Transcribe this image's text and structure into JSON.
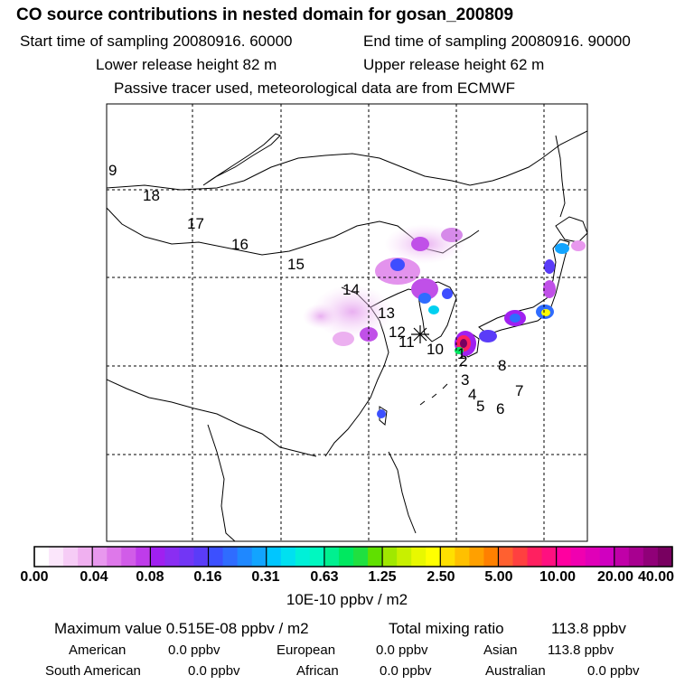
{
  "header": {
    "title": "CO  source contributions in nested domain for gosan_200809",
    "start_time": "Start time of sampling 20080916. 60000",
    "end_time": "End time of sampling 20080916. 90000",
    "lower_release": "Lower release height   82 m",
    "upper_release": "Upper release height   62 m",
    "tracer_note": "Passive tracer used, meteorological data are from ECMWF"
  },
  "colorbar": {
    "unit_label": "10E-10 ppbv / m2",
    "tick_labels": [
      "0.00",
      "0.04",
      "0.08",
      "0.16",
      "0.31",
      "0.63",
      "1.25",
      "2.50",
      "5.00",
      "10.00",
      "20.00",
      "40.00"
    ],
    "segment_colors": [
      "#ffffff",
      "#fbe6fb",
      "#f6ccf6",
      "#f0b0f0",
      "#e898ee",
      "#de78ea",
      "#d15ce8",
      "#bf3cea",
      "#a020f0",
      "#8a2ef2",
      "#7236f5",
      "#5a3cf8",
      "#3c50ff",
      "#2f6cff",
      "#1f88ff",
      "#12a4ff",
      "#00c6ff",
      "#00e0f0",
      "#00f0d8",
      "#00f8c0",
      "#00f090",
      "#00e860",
      "#20e040",
      "#60e000",
      "#a0e800",
      "#c8f000",
      "#e8f800",
      "#ffff00",
      "#ffe000",
      "#ffc000",
      "#ffa000",
      "#ff8000",
      "#ff6030",
      "#ff4040",
      "#ff2060",
      "#ff1080",
      "#ff00a0",
      "#f000b0",
      "#e000b8",
      "#d000c0",
      "#c000a8",
      "#a80090",
      "#900078",
      "#780060"
    ]
  },
  "stats": {
    "max_label": "Maximum value  0.515E-08 ppbv / m2",
    "total_label": "Total mixing ratio",
    "total_value": "113.8 ppbv",
    "american_label": "American",
    "american_value": "0.0 ppbv",
    "european_label": "European",
    "european_value": "0.0 ppbv",
    "asian_label": "Asian",
    "asian_value": "113.8 ppbv",
    "south_american_label": "South American",
    "south_american_value": "0.0 ppbv",
    "african_label": "African",
    "african_value": "0.0 ppbv",
    "australian_label": "Australian",
    "australian_value": "0.0 ppbv"
  },
  "chart_data": {
    "type": "heatmap",
    "title": "CO  source contributions in nested domain for gosan_200809",
    "colorbar_label": "10E-10 ppbv / m2",
    "colorbar_ticks": [
      0.0,
      0.04,
      0.08,
      0.16,
      0.31,
      0.63,
      1.25,
      2.5,
      5.0,
      10.0,
      20.0,
      40.0
    ],
    "max_value": "0.515E-08 ppbv / m2",
    "trajectory_labels": [
      "1",
      "2",
      "3",
      "4",
      "5",
      "6",
      "7",
      "8",
      "9",
      "10",
      "11",
      "12",
      "13",
      "14",
      "15",
      "16",
      "17",
      "18"
    ],
    "receptor": "gosan",
    "grid": true
  }
}
